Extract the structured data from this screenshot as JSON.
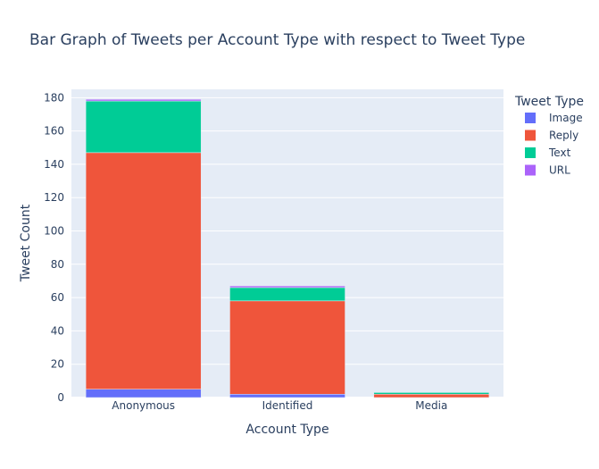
{
  "chart_data": {
    "type": "bar",
    "stacked": true,
    "title": "Bar Graph of Tweets per Account Type with respect to Tweet Type",
    "xlabel": "Account Type",
    "ylabel": "Tweet Count",
    "categories": [
      "Anonymous",
      "Identified",
      "Media"
    ],
    "ylim": [
      0,
      185
    ],
    "yticks": [
      0,
      20,
      40,
      60,
      80,
      100,
      120,
      140,
      160,
      180
    ],
    "grid": true,
    "legend_title": "Tweet Type",
    "legend_position": "right",
    "series": [
      {
        "name": "Image",
        "values": [
          5,
          2,
          0
        ],
        "color": "#636efa"
      },
      {
        "name": "Reply",
        "values": [
          142,
          56,
          2
        ],
        "color": "#ef553b"
      },
      {
        "name": "Text",
        "values": [
          31,
          8,
          1
        ],
        "color": "#00cc96"
      },
      {
        "name": "URL",
        "values": [
          1,
          1,
          0
        ],
        "color": "#ab63fa"
      }
    ],
    "colors": {
      "plot_background": "#e5ecf6",
      "gridline": "#ffffff",
      "text": "#2a3f5f"
    }
  }
}
